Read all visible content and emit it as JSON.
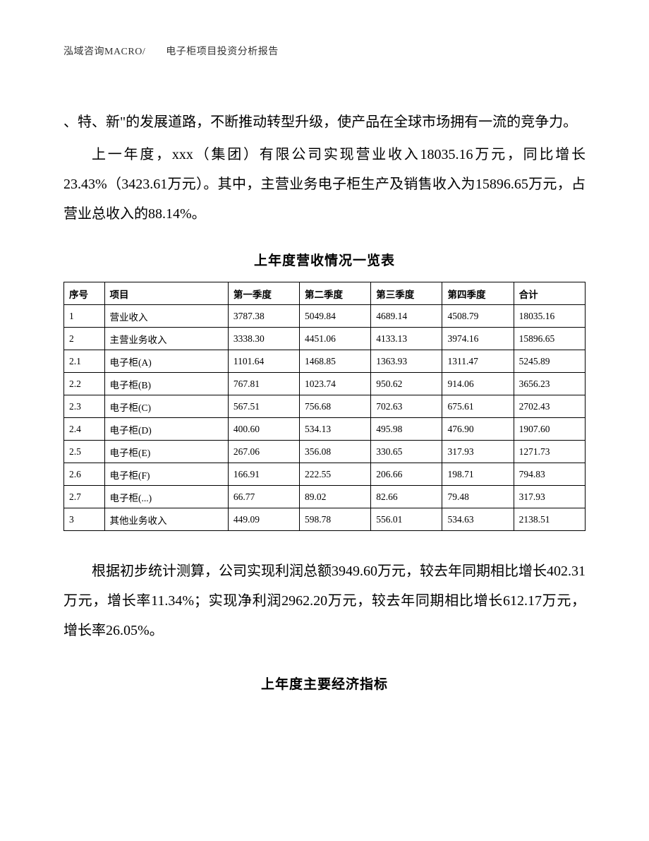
{
  "header": {
    "text": "泓域咨询MACRO/　　电子柜项目投资分析报告"
  },
  "paragraphs": {
    "p1": "、特、新\"的发展道路，不断推动转型升级，使产品在全球市场拥有一流的竞争力。",
    "p2": "上一年度，xxx（集团）有限公司实现营业收入18035.16万元，同比增长23.43%（3423.61万元）。其中，主营业务电子柜生产及销售收入为15896.65万元，占营业总收入的88.14%。",
    "p3": "根据初步统计测算，公司实现利润总额3949.60万元，较去年同期相比增长402.31万元，增长率11.34%；实现净利润2962.20万元，较去年同期相比增长612.17万元，增长率26.05%。"
  },
  "table1": {
    "title": "上年度营收情况一览表",
    "columns": [
      "序号",
      "项目",
      "第一季度",
      "第二季度",
      "第三季度",
      "第四季度",
      "合计"
    ],
    "rows": [
      [
        "1",
        "营业收入",
        "3787.38",
        "5049.84",
        "4689.14",
        "4508.79",
        "18035.16"
      ],
      [
        "2",
        "主营业务收入",
        "3338.30",
        "4451.06",
        "4133.13",
        "3974.16",
        "15896.65"
      ],
      [
        "2.1",
        "电子柜(A)",
        "1101.64",
        "1468.85",
        "1363.93",
        "1311.47",
        "5245.89"
      ],
      [
        "2.2",
        "电子柜(B)",
        "767.81",
        "1023.74",
        "950.62",
        "914.06",
        "3656.23"
      ],
      [
        "2.3",
        "电子柜(C)",
        "567.51",
        "756.68",
        "702.63",
        "675.61",
        "2702.43"
      ],
      [
        "2.4",
        "电子柜(D)",
        "400.60",
        "534.13",
        "495.98",
        "476.90",
        "1907.60"
      ],
      [
        "2.5",
        "电子柜(E)",
        "267.06",
        "356.08",
        "330.65",
        "317.93",
        "1271.73"
      ],
      [
        "2.6",
        "电子柜(F)",
        "166.91",
        "222.55",
        "206.66",
        "198.71",
        "794.83"
      ],
      [
        "2.7",
        "电子柜(...)",
        "66.77",
        "89.02",
        "82.66",
        "79.48",
        "317.93"
      ],
      [
        "3",
        "其他业务收入",
        "449.09",
        "598.78",
        "556.01",
        "534.63",
        "2138.51"
      ]
    ]
  },
  "table2": {
    "title": "上年度主要经济指标"
  }
}
